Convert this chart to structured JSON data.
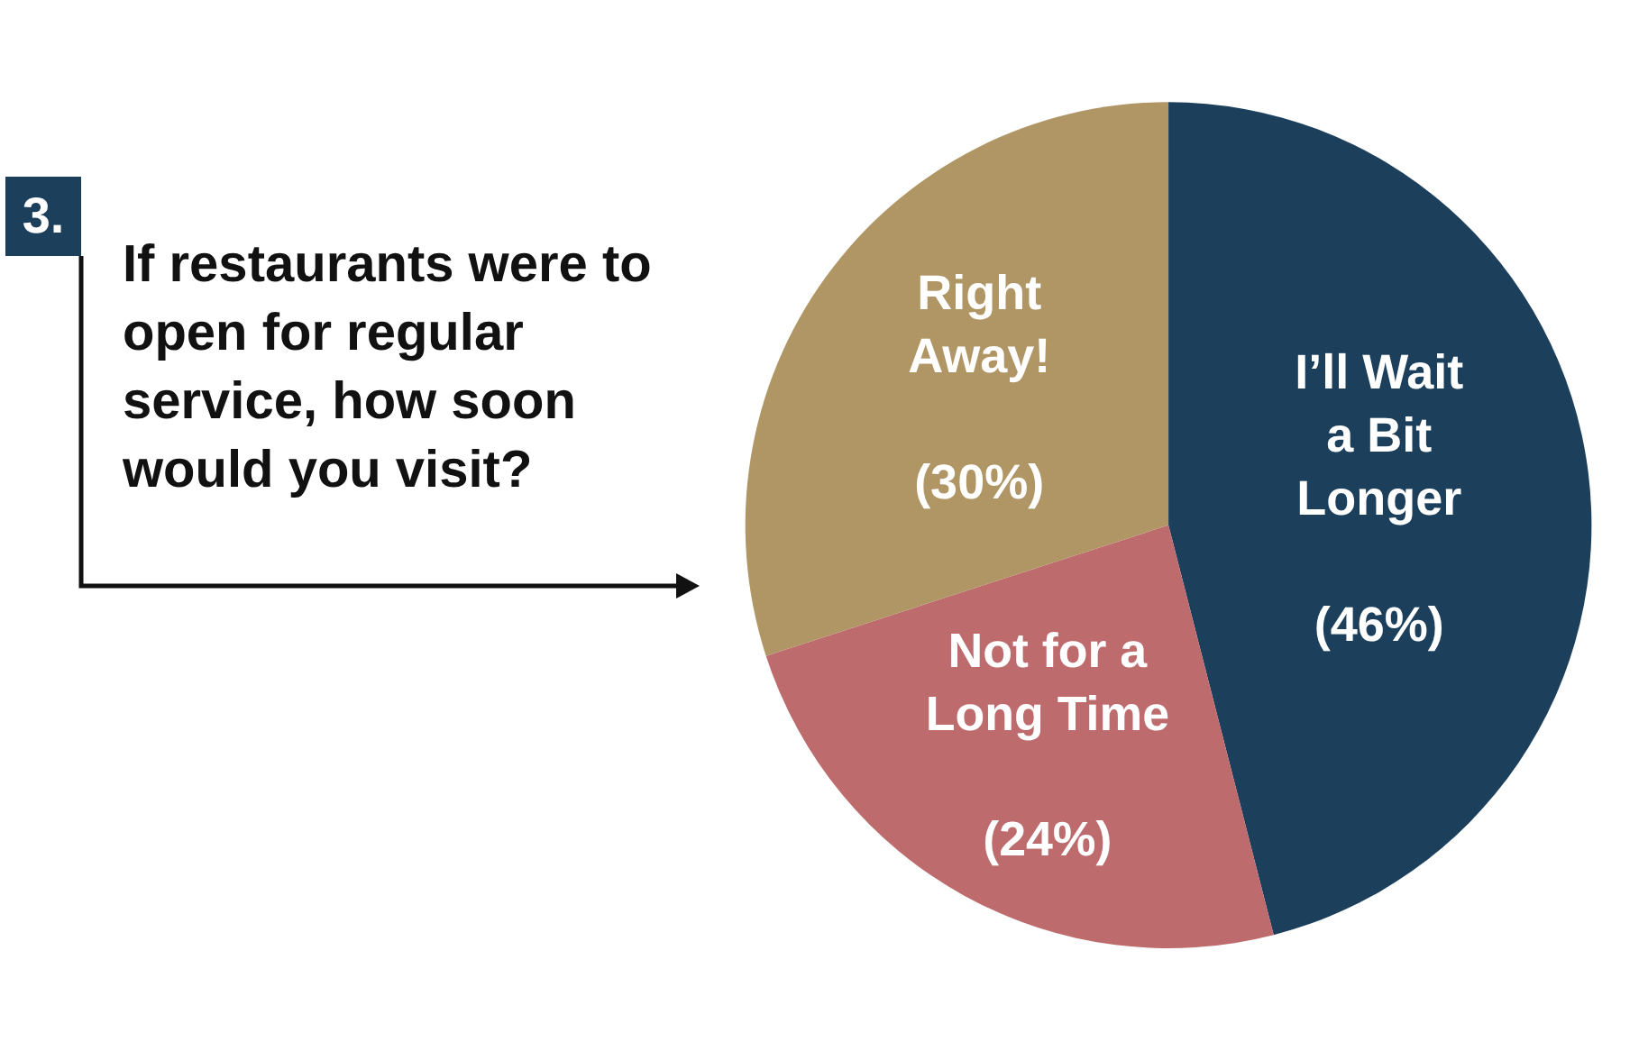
{
  "chart_data": {
    "type": "pie",
    "title": "If restaurants were to open for regular service, how soon would you visit?",
    "annotations": [
      "3."
    ],
    "categories": [
      "I’ll Wait a Bit Longer",
      "Not for a Long Time",
      "Right Away!"
    ],
    "values": [
      46,
      24,
      30
    ],
    "value_labels": [
      "(46%)",
      "(24%)",
      "(30%)"
    ],
    "colors": [
      "#1c3f5c",
      "#bd6b6d",
      "#b09565"
    ],
    "legend": false
  }
}
